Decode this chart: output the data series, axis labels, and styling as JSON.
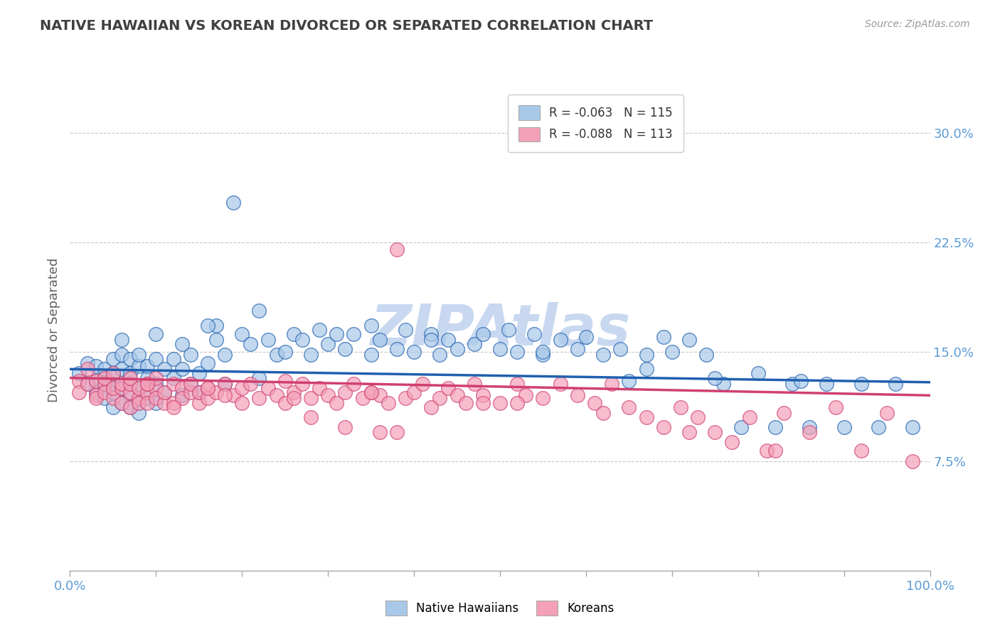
{
  "title": "NATIVE HAWAIIAN VS KOREAN DIVORCED OR SEPARATED CORRELATION CHART",
  "source_text": "Source: ZipAtlas.com",
  "ylabel": "Divorced or Separated",
  "right_yticks": [
    0.0,
    0.075,
    0.15,
    0.225,
    0.3
  ],
  "right_yticklabels": [
    "",
    "7.5%",
    "15.0%",
    "22.5%",
    "30.0%"
  ],
  "xlim": [
    0.0,
    1.0
  ],
  "ylim": [
    0.0,
    0.33
  ],
  "xticks": [
    0.0,
    0.1,
    0.2,
    0.3,
    0.4,
    0.5,
    0.6,
    0.7,
    0.8,
    0.9,
    1.0
  ],
  "xticklabels": [
    "0.0%",
    "",
    "",
    "",
    "",
    "",
    "",
    "",
    "",
    "",
    "100.0%"
  ],
  "legend_labels": [
    "Native Hawaiians",
    "Koreans"
  ],
  "legend_r": [
    "R = -0.063",
    "R = -0.088"
  ],
  "legend_n": [
    "N = 115",
    "N = 113"
  ],
  "blue_color": "#a8c8e8",
  "pink_color": "#f4a0b8",
  "blue_line_color": "#2060b0",
  "pink_line_color": "#d04070",
  "title_color": "#404040",
  "axis_label_color": "#606060",
  "tick_color": "#5b9bd5",
  "watermark_color": "#c8d8f0",
  "background_color": "#ffffff",
  "grid_color": "#c8c8c8",
  "blue_scatter_x": [
    0.01,
    0.02,
    0.02,
    0.03,
    0.03,
    0.03,
    0.04,
    0.04,
    0.04,
    0.04,
    0.05,
    0.05,
    0.05,
    0.05,
    0.05,
    0.06,
    0.06,
    0.06,
    0.06,
    0.07,
    0.07,
    0.07,
    0.07,
    0.07,
    0.08,
    0.08,
    0.08,
    0.08,
    0.09,
    0.09,
    0.09,
    0.1,
    0.1,
    0.1,
    0.11,
    0.11,
    0.12,
    0.12,
    0.13,
    0.13,
    0.14,
    0.14,
    0.15,
    0.15,
    0.16,
    0.17,
    0.18,
    0.18,
    0.19,
    0.2,
    0.21,
    0.22,
    0.23,
    0.24,
    0.25,
    0.26,
    0.27,
    0.28,
    0.29,
    0.3,
    0.31,
    0.32,
    0.33,
    0.35,
    0.36,
    0.38,
    0.39,
    0.4,
    0.42,
    0.43,
    0.44,
    0.45,
    0.47,
    0.48,
    0.5,
    0.51,
    0.52,
    0.54,
    0.55,
    0.57,
    0.59,
    0.6,
    0.62,
    0.64,
    0.65,
    0.67,
    0.69,
    0.7,
    0.72,
    0.74,
    0.76,
    0.78,
    0.8,
    0.82,
    0.84,
    0.86,
    0.88,
    0.9,
    0.92,
    0.94,
    0.96,
    0.98,
    0.17,
    0.22,
    0.35,
    0.42,
    0.55,
    0.67,
    0.75,
    0.85,
    0.06,
    0.08,
    0.1,
    0.13,
    0.16
  ],
  "blue_scatter_y": [
    0.135,
    0.128,
    0.142,
    0.13,
    0.14,
    0.122,
    0.132,
    0.128,
    0.138,
    0.118,
    0.135,
    0.145,
    0.122,
    0.128,
    0.112,
    0.138,
    0.125,
    0.115,
    0.148,
    0.12,
    0.135,
    0.128,
    0.112,
    0.145,
    0.14,
    0.125,
    0.115,
    0.108,
    0.132,
    0.14,
    0.118,
    0.145,
    0.128,
    0.115,
    0.138,
    0.122,
    0.132,
    0.145,
    0.12,
    0.138,
    0.128,
    0.148,
    0.122,
    0.135,
    0.142,
    0.158,
    0.148,
    0.128,
    0.252,
    0.162,
    0.155,
    0.132,
    0.158,
    0.148,
    0.15,
    0.162,
    0.158,
    0.148,
    0.165,
    0.155,
    0.162,
    0.152,
    0.162,
    0.148,
    0.158,
    0.152,
    0.165,
    0.15,
    0.162,
    0.148,
    0.158,
    0.152,
    0.155,
    0.162,
    0.152,
    0.165,
    0.15,
    0.162,
    0.148,
    0.158,
    0.152,
    0.16,
    0.148,
    0.152,
    0.13,
    0.148,
    0.16,
    0.15,
    0.158,
    0.148,
    0.128,
    0.098,
    0.135,
    0.098,
    0.128,
    0.098,
    0.128,
    0.098,
    0.128,
    0.098,
    0.128,
    0.098,
    0.168,
    0.178,
    0.168,
    0.158,
    0.15,
    0.138,
    0.132,
    0.13,
    0.158,
    0.148,
    0.162,
    0.155,
    0.168
  ],
  "pink_scatter_x": [
    0.01,
    0.01,
    0.02,
    0.02,
    0.03,
    0.03,
    0.03,
    0.04,
    0.04,
    0.04,
    0.05,
    0.05,
    0.05,
    0.06,
    0.06,
    0.06,
    0.07,
    0.07,
    0.07,
    0.07,
    0.08,
    0.08,
    0.08,
    0.09,
    0.09,
    0.09,
    0.1,
    0.1,
    0.1,
    0.11,
    0.11,
    0.12,
    0.12,
    0.13,
    0.13,
    0.14,
    0.14,
    0.15,
    0.15,
    0.16,
    0.16,
    0.17,
    0.18,
    0.19,
    0.2,
    0.2,
    0.21,
    0.22,
    0.23,
    0.24,
    0.25,
    0.26,
    0.27,
    0.28,
    0.29,
    0.3,
    0.31,
    0.32,
    0.33,
    0.34,
    0.35,
    0.36,
    0.37,
    0.38,
    0.39,
    0.4,
    0.41,
    0.43,
    0.44,
    0.45,
    0.46,
    0.47,
    0.48,
    0.5,
    0.52,
    0.53,
    0.55,
    0.57,
    0.59,
    0.61,
    0.63,
    0.65,
    0.67,
    0.69,
    0.71,
    0.73,
    0.75,
    0.77,
    0.79,
    0.81,
    0.83,
    0.86,
    0.89,
    0.92,
    0.95,
    0.98,
    0.25,
    0.35,
    0.42,
    0.38,
    0.28,
    0.18,
    0.32,
    0.48,
    0.52,
    0.62,
    0.72,
    0.82,
    0.36,
    0.26,
    0.16,
    0.12,
    0.09
  ],
  "pink_scatter_y": [
    0.13,
    0.122,
    0.128,
    0.138,
    0.12,
    0.13,
    0.118,
    0.128,
    0.122,
    0.132,
    0.118,
    0.125,
    0.135,
    0.115,
    0.125,
    0.128,
    0.112,
    0.122,
    0.128,
    0.132,
    0.118,
    0.125,
    0.115,
    0.122,
    0.128,
    0.115,
    0.125,
    0.118,
    0.132,
    0.115,
    0.122,
    0.128,
    0.115,
    0.125,
    0.118,
    0.122,
    0.128,
    0.115,
    0.122,
    0.125,
    0.118,
    0.122,
    0.128,
    0.12,
    0.115,
    0.125,
    0.128,
    0.118,
    0.125,
    0.12,
    0.115,
    0.122,
    0.128,
    0.118,
    0.125,
    0.12,
    0.115,
    0.122,
    0.128,
    0.118,
    0.122,
    0.12,
    0.115,
    0.22,
    0.118,
    0.122,
    0.128,
    0.118,
    0.125,
    0.12,
    0.115,
    0.128,
    0.12,
    0.115,
    0.128,
    0.12,
    0.118,
    0.128,
    0.12,
    0.115,
    0.128,
    0.112,
    0.105,
    0.098,
    0.112,
    0.105,
    0.095,
    0.088,
    0.105,
    0.082,
    0.108,
    0.095,
    0.112,
    0.082,
    0.108,
    0.075,
    0.13,
    0.122,
    0.112,
    0.095,
    0.105,
    0.12,
    0.098,
    0.115,
    0.115,
    0.108,
    0.095,
    0.082,
    0.095,
    0.118,
    0.125,
    0.112,
    0.128
  ],
  "blue_trend_y_start": 0.138,
  "blue_trend_y_end": 0.129,
  "pink_trend_y_start": 0.132,
  "pink_trend_y_end": 0.12
}
